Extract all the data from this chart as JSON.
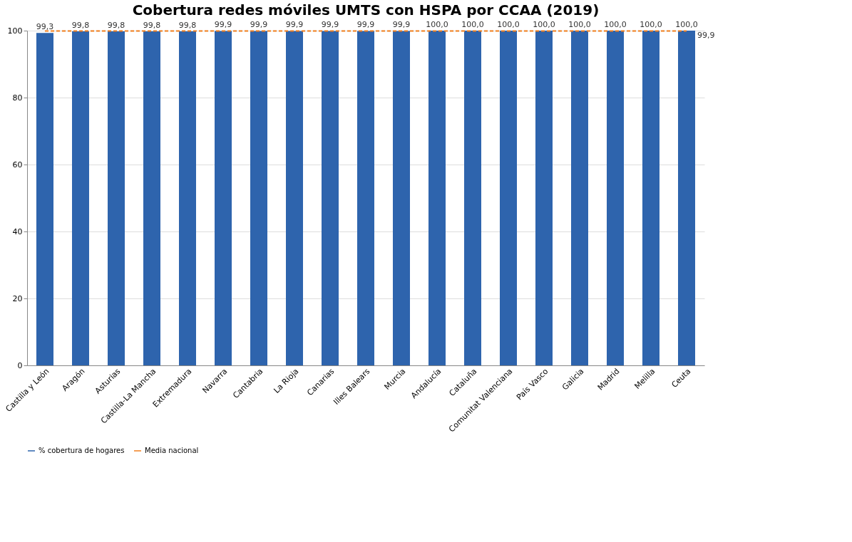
{
  "chart_data": {
    "type": "bar",
    "title": "Cobertura redes móviles UMTS con HSPA por CCAA (2019)",
    "categories": [
      "Castilla y León",
      "Aragón",
      "Asturias",
      "Castilla-La Mancha",
      "Extremadura",
      "Navarra",
      "Cantabria",
      "La Rioja",
      "Canarias",
      "Illes Balears",
      "Murcia",
      "Andalucía",
      "Cataluña",
      "Comunitat Valenciana",
      "País Vasco",
      "Galicia",
      "Madrid",
      "Melilla",
      "Ceuta"
    ],
    "series": [
      {
        "name": "% cobertura de hogares",
        "color": "#2e64ad",
        "values": [
          99.3,
          99.8,
          99.8,
          99.8,
          99.8,
          99.9,
          99.9,
          99.9,
          99.9,
          99.9,
          99.9,
          100.0,
          100.0,
          100.0,
          100.0,
          100.0,
          100.0,
          100.0,
          100.0
        ],
        "value_labels": [
          "99,3",
          "99,8",
          "99,8",
          "99,8",
          "99,8",
          "99,9",
          "99,9",
          "99,9",
          "99,9",
          "99,9",
          "99,9",
          "100,0",
          "100,0",
          "100,0",
          "100,0",
          "100,0",
          "100,0",
          "100,0",
          "100,0"
        ]
      },
      {
        "name": "Media nacional",
        "color": "#f07f1e",
        "type": "line",
        "line_style": "dashed",
        "values": [
          99.9,
          99.9,
          99.9,
          99.9,
          99.9,
          99.9,
          99.9,
          99.9,
          99.9,
          99.9,
          99.9,
          99.9,
          99.9,
          99.9,
          99.9,
          99.9,
          99.9,
          99.9,
          99.9
        ],
        "value_labels": [
          null,
          null,
          null,
          null,
          null,
          null,
          null,
          null,
          null,
          null,
          null,
          null,
          null,
          null,
          null,
          null,
          null,
          null,
          "99,9"
        ]
      }
    ],
    "ylim": [
      0,
      100
    ],
    "yticks": [
      0,
      20,
      40,
      60,
      80,
      100
    ],
    "grid": "y",
    "legend": "bottom",
    "marker": "none"
  }
}
